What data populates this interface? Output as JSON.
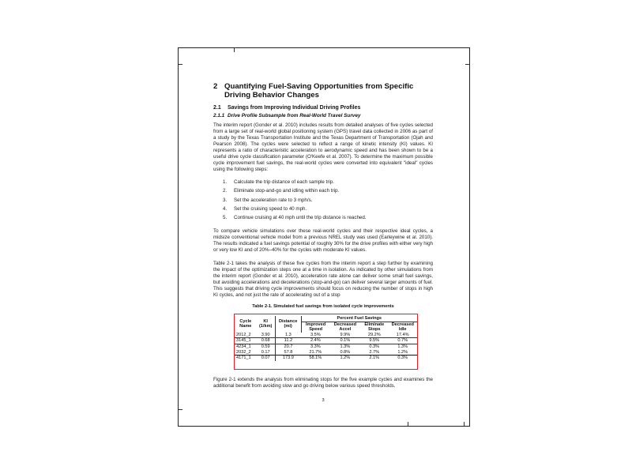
{
  "heading": {
    "number": "2",
    "title": "Quantifying Fuel-Saving Opportunities from Specific Driving Behavior Changes"
  },
  "section": {
    "number": "2.1",
    "title": "Savings from Improving Individual Driving Profiles"
  },
  "subsection": {
    "number": "2.1.1",
    "title": "Drive Profile Subsample from Real-World Travel Survey"
  },
  "paragraphs": [
    "The interim report (Gonder et al. 2010) includes results from detailed analyses of five cycles selected from a large set of real-world global positioning system (GPS) travel data collected in 2006 as part of a study by the Texas Transportation Institute and the Texas Department of Transportation (Ojah and Pearson 2008). The cycles were selected to reflect a range of kinetic intensity (KI) values. KI represents a ratio of characteristic acceleration to aerodynamic speed and has been shown to be a useful drive cycle classification parameter (O'Keefe et al. 2007). To determine the maximum possible cycle improvement fuel savings, the real-world cycles were converted into equivalent \"ideal\" cycles using the following steps:",
    "To compare vehicle simulations over these real-world cycles and their respective ideal cycles, a midsize conventional vehicle model from a previous NREL study was used (Earleywine et al. 2010). The results indicated a fuel savings potential of roughly 30% for the drive profiles with either very high or very low KI and of 20%–40% for the cycles with moderate KI values.",
    "Table 2-1 takes the analysis of these five cycles from the interim report a step further by examining the impact of the optimization steps one at a time in isolation. As indicated by other simulations from the interim report (Gonder et al. 2010), acceleration rate alone can deliver some small fuel savings, but avoiding accelerations and decelerations (stop-and-go) can deliver several larger amounts of fuel. This suggests that driving cycle improvements should focus on reducing the number of stops in high KI cycles, and not just the rate of accelerating out of a stop",
    "Figure 2-1 extends the analysis from eliminating stops for the five example cycles and examines the additional benefit from avoiding slow and go driving below various speed thresholds."
  ],
  "steps": [
    {
      "n": "1.",
      "text": "Calculate the trip distance of each sample trip."
    },
    {
      "n": "2.",
      "text": "Eliminate stop-and-go and idling within each trip."
    },
    {
      "n": "3.",
      "text": "Set the acceleration rate to 3 mph/s."
    },
    {
      "n": "4.",
      "text": "Set the cruising speed to 40 mph."
    },
    {
      "n": "5.",
      "text": "Continue cruising at 40 mph until the trip distance is reached."
    }
  ],
  "table": {
    "caption": "Table 2-1. Simulated fuel savings from isolated cycle improvements",
    "group_header": "Percent Fuel Savings",
    "headers": {
      "cycle": "Cycle Name",
      "ki": "KI (1/km)",
      "distance": "Distance (mi)",
      "speed": "Improved Speed",
      "accel": "Decreased Accel",
      "stops": "Eliminate Stops",
      "idle": "Decreased Idle"
    },
    "rows": [
      [
        "2012_2",
        "3.90",
        "1.3",
        "3.5%",
        "9.9%",
        "29.2%",
        "17.4%"
      ],
      [
        "3145_1",
        "0.68",
        "11.2",
        "2.4%",
        "0.1%",
        "9.5%",
        "0.7%"
      ],
      [
        "4234_1",
        "0.59",
        "20.7",
        "3.3%",
        "1.3%",
        "0.3%",
        "1.3%"
      ],
      [
        "2032_2",
        "0.17",
        "57.8",
        "21.7%",
        "0.8%",
        "2.7%",
        "1.2%"
      ],
      [
        "4171_1",
        "0.07",
        "173.9",
        "58.1%",
        "1.2%",
        "2.1%",
        "0.3%"
      ]
    ],
    "border_color": "#e0202a"
  },
  "page_number": "3"
}
